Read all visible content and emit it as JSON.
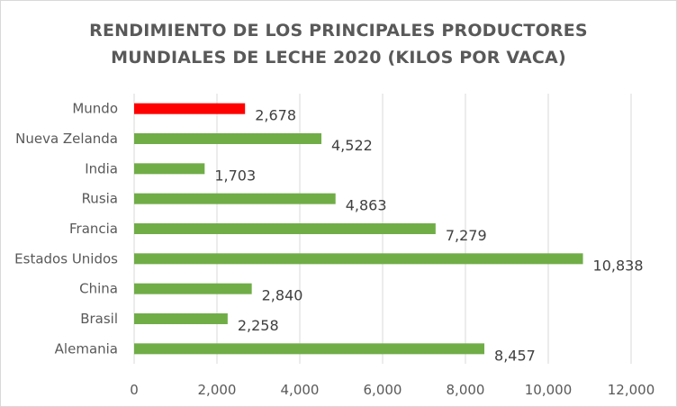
{
  "chart_data": {
    "type": "bar",
    "orientation": "horizontal",
    "title_lines": [
      "RENDIMIENTO DE LOS PRINCIPALES PRODUCTORES",
      "MUNDIALES DE LECHE 2020 (KILOS POR VACA)"
    ],
    "categories": [
      "Mundo",
      "Nueva Zelanda",
      "India",
      "Rusia",
      "Francia",
      "Estados Unidos",
      "China",
      "Brasil",
      "Alemania"
    ],
    "values": [
      2678,
      4522,
      1703,
      4863,
      7279,
      10838,
      2840,
      2258,
      8457
    ],
    "value_labels": [
      "2,678",
      "4,522",
      "1,703",
      "4,863",
      "7,279",
      "10,838",
      "2,840",
      "2,258",
      "8,457"
    ],
    "bar_colors": [
      "#ff0000",
      "#70ad47",
      "#70ad47",
      "#70ad47",
      "#70ad47",
      "#70ad47",
      "#70ad47",
      "#70ad47",
      "#70ad47"
    ],
    "xlim": [
      0,
      12000
    ],
    "xticks": [
      0,
      2000,
      4000,
      6000,
      8000,
      10000,
      12000
    ],
    "xtick_labels": [
      "0",
      "2,000",
      "4,000",
      "6,000",
      "8,000",
      "10,000",
      "12,000"
    ],
    "grid": true,
    "legend": "none",
    "xlabel": "",
    "ylabel": ""
  }
}
